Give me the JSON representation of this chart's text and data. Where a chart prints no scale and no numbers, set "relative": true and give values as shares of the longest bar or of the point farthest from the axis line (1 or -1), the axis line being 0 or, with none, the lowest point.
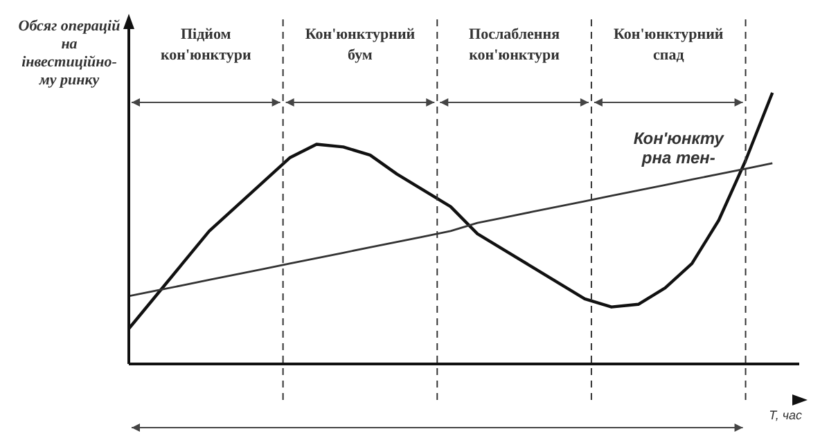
{
  "chart_data": {
    "type": "line",
    "relative": true,
    "ylabel": "Обсяг операцій на інвестиційно-му ринку",
    "xlabel": "T, час",
    "marker": "none",
    "categories": [
      null,
      null,
      null,
      null,
      null,
      null,
      null,
      null,
      null,
      null,
      null,
      null,
      null,
      null,
      null,
      null,
      null,
      null,
      null,
      null,
      null,
      null,
      null,
      null,
      null,
      null
    ],
    "series": [
      {
        "color": "#111111",
        "values": [
          0.13,
          0.25,
          0.37,
          0.49,
          0.58,
          0.67,
          0.76,
          0.81,
          0.8,
          0.77,
          0.7,
          0.64,
          0.58,
          0.48,
          0.42,
          0.36,
          0.3,
          0.24,
          0.21,
          0.22,
          0.28,
          0.37,
          0.53,
          0.75,
          1.0,
          null
        ]
      },
      {
        "color": "#333333",
        "values": [
          0.25,
          0.27,
          0.29,
          0.31,
          0.33,
          0.35,
          0.37,
          0.39,
          0.41,
          0.43,
          0.45,
          0.47,
          0.49,
          0.52,
          0.54,
          0.56,
          0.58,
          0.6,
          0.62,
          0.64,
          0.66,
          0.68,
          0.7,
          0.72,
          0.74,
          null
        ]
      }
    ],
    "annotations": [
      "Підйом кон'юнктури",
      "Кон'юнктурний бум",
      "Послаблення кон'юнктури",
      "Кон'юнктурний спад",
      "Кон'юнктурна тен-"
    ]
  }
}
